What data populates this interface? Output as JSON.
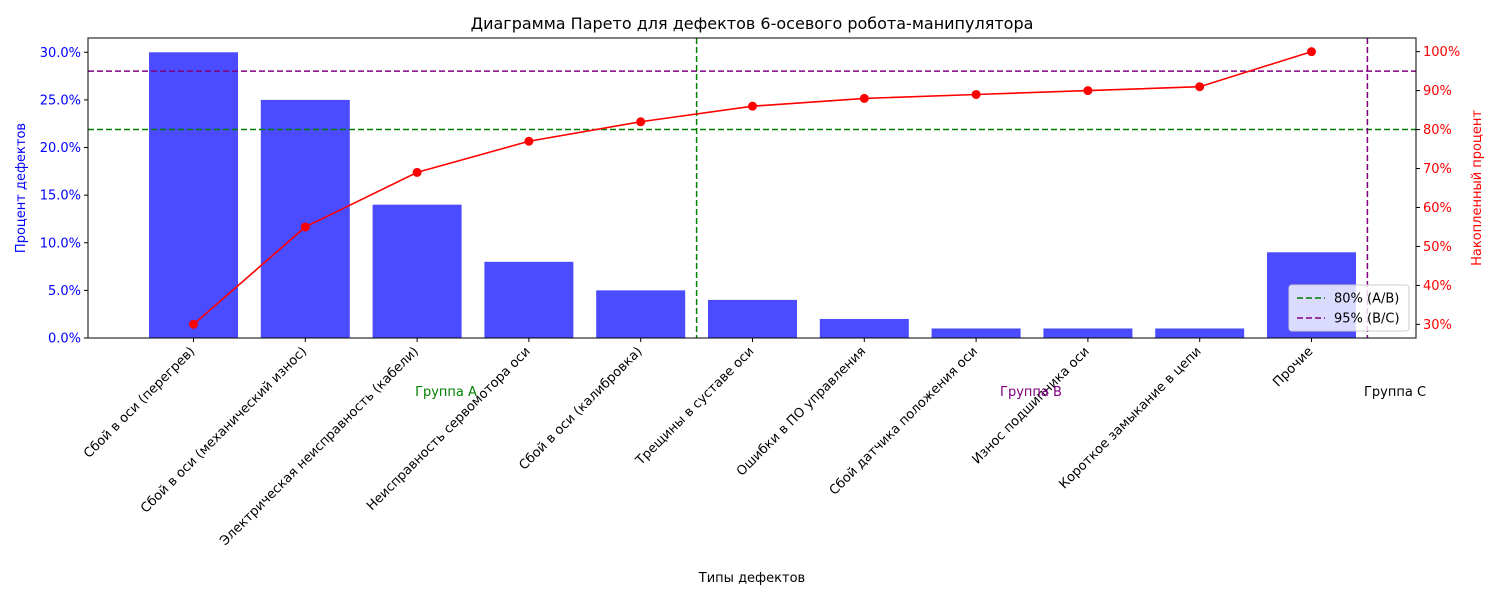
{
  "chart_data": {
    "type": "bar",
    "title": "Диаграмма Парето для дефектов 6-осевого робота-манипулятора",
    "xlabel": "Типы дефектов",
    "ylabel": "Процент дефектов",
    "y2label": "Накопленный процент",
    "categories": [
      "Сбой в оси (перегрев)",
      "Сбой в оси (механический износ)",
      "Электрическая неисправность (кабели)",
      "Неисправность сервомотора оси",
      "Сбой в оси (калибровка)",
      "Трещины в суставе оси",
      "Ошибки в ПО управления",
      "Сбой датчика положения оси",
      "Износ подшипника оси",
      "Короткое замыкание в цепи",
      "Прочие"
    ],
    "series": [
      {
        "values": [
          30,
          25,
          14,
          8,
          5,
          4,
          2,
          1,
          1,
          1,
          9
        ]
      },
      {
        "axis": "right",
        "values": [
          30,
          55,
          69,
          77,
          82,
          86,
          88,
          89,
          90,
          91,
          100
        ]
      }
    ],
    "ylim": [
      0,
      31.5
    ],
    "y2lim": [
      26.5,
      103.5
    ],
    "yticks": [
      "0.0%",
      "5.0%",
      "10.0%",
      "15.0%",
      "20.0%",
      "25.0%",
      "30.0%"
    ],
    "y2ticks": [
      "30%",
      "40%",
      "50%",
      "60%",
      "70%",
      "80%",
      "90%",
      "100%"
    ],
    "thresholds": [
      {
        "label": "80% (A/B)",
        "value": 80,
        "color": "#008000"
      },
      {
        "label": "95% (B/C)",
        "value": 95,
        "color": "#800080"
      }
    ],
    "group_labels": [
      {
        "text": "Группа A",
        "color": "#008000"
      },
      {
        "text": "Группа B",
        "color": "#800080"
      },
      {
        "text": "Группа C",
        "color": "#000000"
      }
    ],
    "group_boundaries": [
      4.5,
      10.5
    ],
    "colors": {
      "bars": "#4b4bff",
      "line": "#ff0000",
      "left_axis": "#0000ff",
      "right_axis": "#ff0000"
    },
    "grid": false,
    "legend_position": "lower-right"
  }
}
